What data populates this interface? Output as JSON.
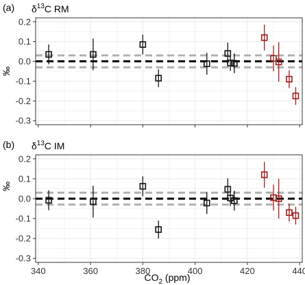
{
  "colors": {
    "black_series": "#111111",
    "red_series": "#9e1b1b",
    "zero_line": "#000000",
    "band_line": "#b0b0b0",
    "grid": "#ebebeb",
    "panel_border": "#333333"
  },
  "chart_data": [
    {
      "type": "scatter",
      "panel": "(a)",
      "title_prefix": "δ",
      "title_sup": "13",
      "title_suffix": "C RM",
      "ylabel": "‰",
      "xlabel": "",
      "xlim": [
        339,
        441
      ],
      "ylim": [
        -0.32,
        0.22
      ],
      "yticks": [
        -0.3,
        -0.2,
        -0.1,
        0.0,
        0.1,
        0.2
      ],
      "ytick_labels": [
        "-0.3",
        "-0.2",
        "-0.1",
        "0.0",
        "0.1",
        "0.2"
      ],
      "xticks": [
        340,
        360,
        380,
        400,
        420,
        440
      ],
      "xtick_labels": [],
      "reference_lines": {
        "zero": 0.0,
        "band": [
          -0.03,
          0.03
        ]
      },
      "grid": true,
      "series": [
        {
          "color": "black",
          "points": [
            {
              "x": 344,
              "y": 0.035,
              "err": 0.05
            },
            {
              "x": 361,
              "y": 0.035,
              "err": 0.08
            },
            {
              "x": 380,
              "y": 0.085,
              "err": 0.05
            },
            {
              "x": 386,
              "y": -0.085,
              "err": 0.045
            },
            {
              "x": 404.5,
              "y": -0.012,
              "err": 0.055
            },
            {
              "x": 412.5,
              "y": 0.04,
              "err": 0.055
            },
            {
              "x": 413.5,
              "y": -0.008,
              "err": 0.04
            },
            {
              "x": 415,
              "y": -0.01,
              "err": 0.05
            }
          ]
        },
        {
          "color": "red",
          "points": [
            {
              "x": 426.5,
              "y": 0.12,
              "err": 0.065
            },
            {
              "x": 430,
              "y": 0.015,
              "err": 0.065
            },
            {
              "x": 432,
              "y": -0.003,
              "err": 0.1
            },
            {
              "x": 436,
              "y": -0.09,
              "err": 0.045
            },
            {
              "x": 438.5,
              "y": -0.175,
              "err": 0.045
            }
          ]
        }
      ]
    },
    {
      "type": "scatter",
      "panel": "(b)",
      "title_prefix": "δ",
      "title_sup": "13",
      "title_suffix": "C IM",
      "ylabel": "‰",
      "xlabel_prefix": "CO",
      "xlabel_sub": "2",
      "xlabel_suffix": " (ppm)",
      "xlim": [
        339,
        441
      ],
      "ylim": [
        -0.32,
        0.22
      ],
      "yticks": [
        -0.3,
        -0.2,
        -0.1,
        0.0,
        0.1,
        0.2
      ],
      "ytick_labels": [
        "-0.3",
        "-0.2",
        "-0.1",
        "0.0",
        "0.1",
        "0.2"
      ],
      "xticks": [
        340,
        360,
        380,
        400,
        420,
        440
      ],
      "xtick_labels": [
        "340",
        "360",
        "380",
        "400",
        "420",
        "440"
      ],
      "reference_lines": {
        "zero": 0.0,
        "band": [
          -0.03,
          0.03
        ]
      },
      "grid": true,
      "series": [
        {
          "color": "black",
          "points": [
            {
              "x": 344,
              "y": -0.008,
              "err": 0.05
            },
            {
              "x": 361,
              "y": -0.015,
              "err": 0.08
            },
            {
              "x": 380,
              "y": 0.062,
              "err": 0.05
            },
            {
              "x": 386,
              "y": -0.155,
              "err": 0.045
            },
            {
              "x": 404.5,
              "y": -0.022,
              "err": 0.055
            },
            {
              "x": 412.5,
              "y": 0.047,
              "err": 0.055
            },
            {
              "x": 413.5,
              "y": 0.003,
              "err": 0.04
            },
            {
              "x": 415,
              "y": -0.01,
              "err": 0.05
            }
          ]
        },
        {
          "color": "red",
          "points": [
            {
              "x": 426.5,
              "y": 0.12,
              "err": 0.065
            },
            {
              "x": 430,
              "y": 0.005,
              "err": 0.065
            },
            {
              "x": 432,
              "y": 0.0,
              "err": 0.1
            },
            {
              "x": 436,
              "y": -0.07,
              "err": 0.045
            },
            {
              "x": 438.5,
              "y": -0.085,
              "err": 0.045
            }
          ]
        }
      ]
    }
  ]
}
